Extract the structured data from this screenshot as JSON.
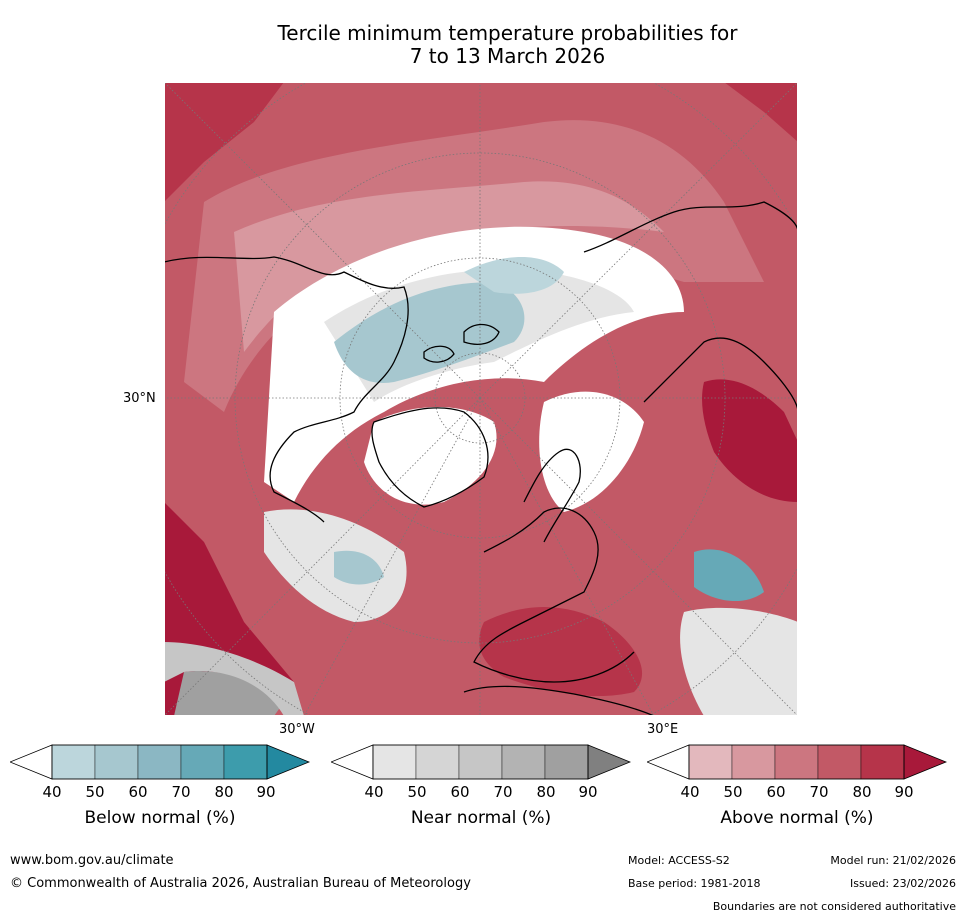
{
  "title": {
    "line1": "Tercile minimum temperature probabilities for",
    "line2": "7 to 13 March 2026"
  },
  "map": {
    "projection": "north-polar-stereographic",
    "labels": {
      "lat_30n": "30°N",
      "lon_30w": "30°W",
      "lon_30e": "30°E"
    }
  },
  "colorbars": [
    {
      "name": "below",
      "title": "Below normal (%)",
      "ticks": [
        "40",
        "50",
        "60",
        "70",
        "80",
        "90"
      ],
      "colors": [
        "#ffffff",
        "#bcd6dc",
        "#a6c7cf",
        "#8bb7c3",
        "#66a9b7",
        "#3d9cac",
        "#2389a0"
      ]
    },
    {
      "name": "near",
      "title": "Near normal (%)",
      "ticks": [
        "40",
        "50",
        "60",
        "70",
        "80",
        "90"
      ],
      "colors": [
        "#ffffff",
        "#e5e5e5",
        "#d5d5d5",
        "#c6c6c6",
        "#b3b3b3",
        "#a0a0a0",
        "#808080"
      ]
    },
    {
      "name": "above",
      "title": "Above normal (%)",
      "ticks": [
        "40",
        "50",
        "60",
        "70",
        "80",
        "90"
      ],
      "colors": [
        "#ffffff",
        "#e3b8bd",
        "#d8989f",
        "#cc7680",
        "#c25966",
        "#b6344a",
        "#a8193a"
      ]
    }
  ],
  "footer": {
    "website": "www.bom.gov.au/climate",
    "copyright": "© Commonwealth of Australia 2026, Australian Bureau of Meteorology",
    "model": "Model: ACCESS-S2",
    "model_run": "Model run: 21/02/2026",
    "base_period": "Base period: 1981-2018",
    "issued": "Issued: 23/02/2026",
    "disclaimer": "Boundaries are not considered authoritative"
  }
}
